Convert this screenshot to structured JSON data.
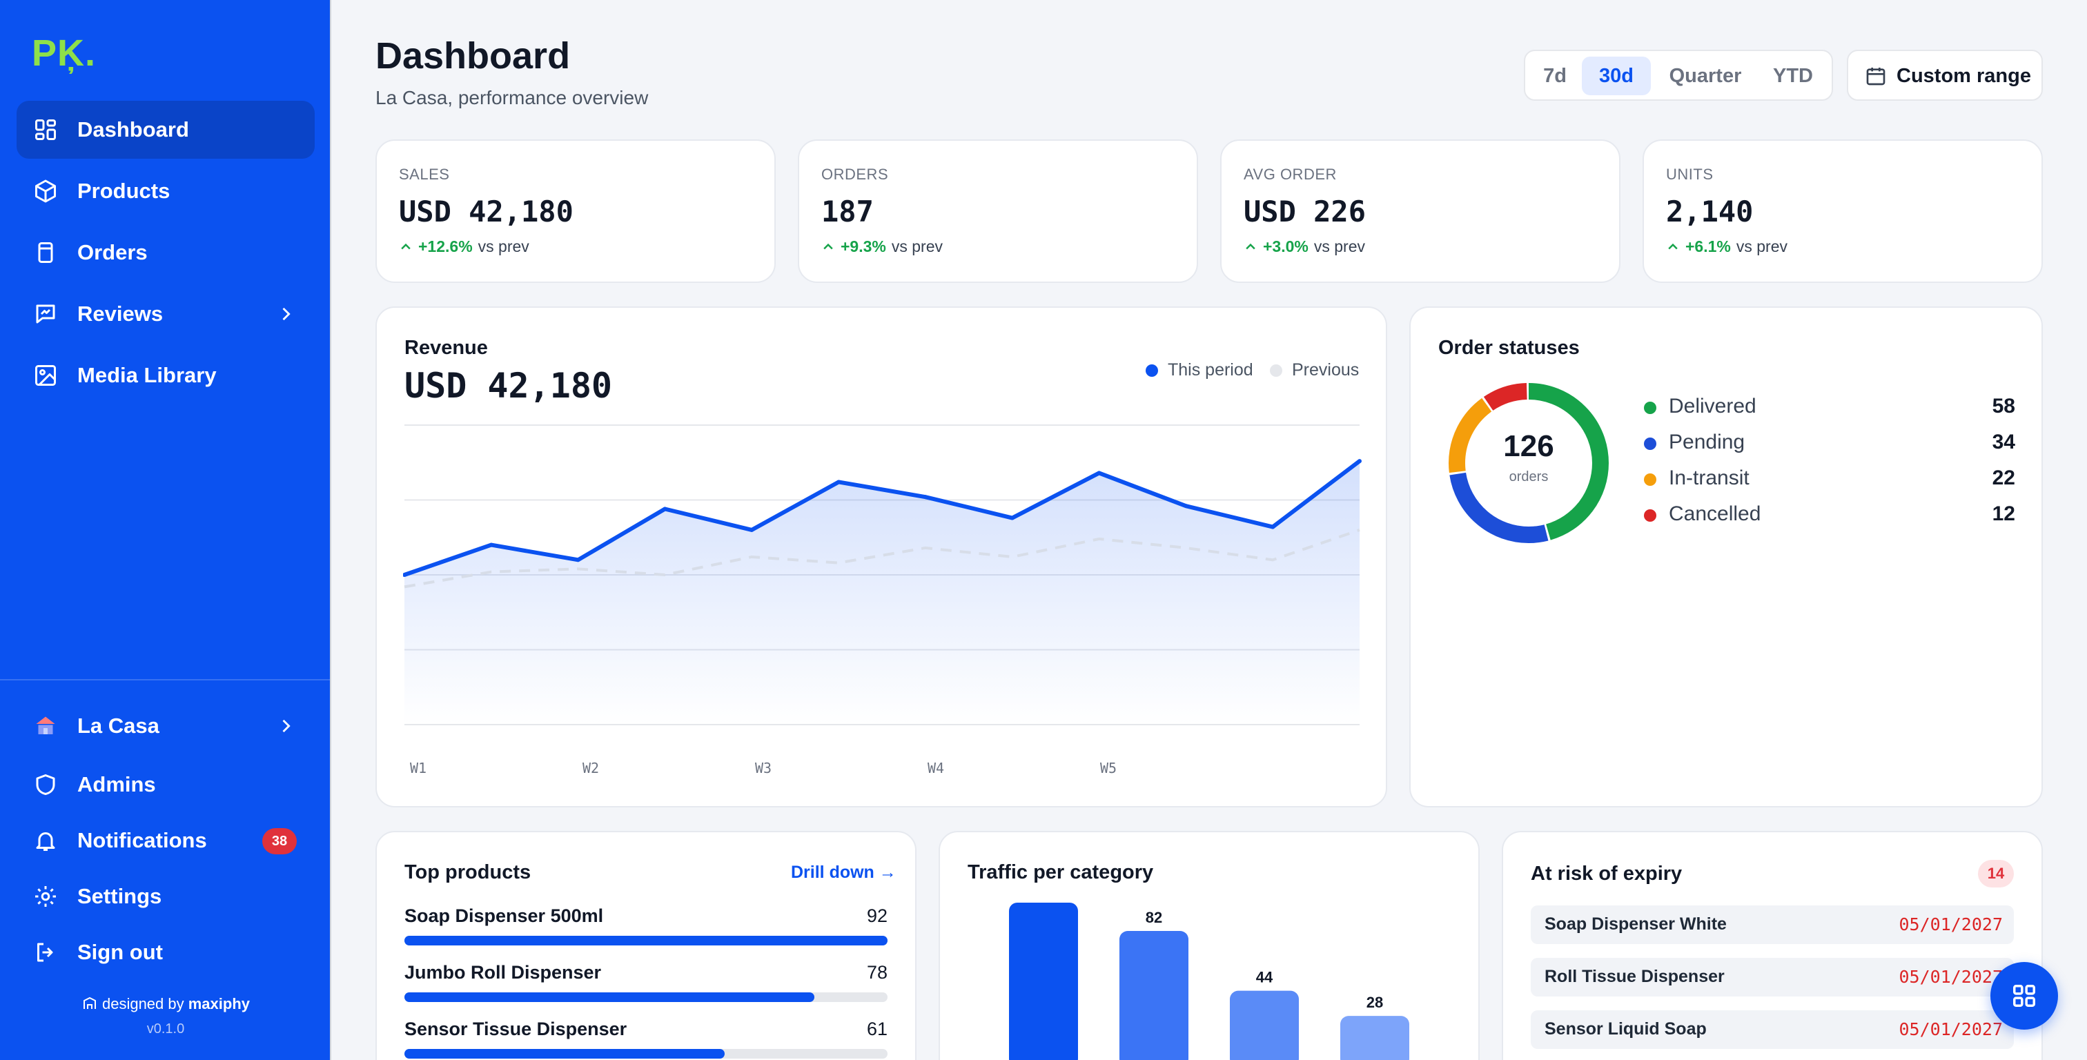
{
  "brand": {
    "logo": "PĶ."
  },
  "sidebar": {
    "items": [
      {
        "label": "Dashboard",
        "icon": "dashboard-icon",
        "active": true
      },
      {
        "label": "Products",
        "icon": "box-icon"
      },
      {
        "label": "Orders",
        "icon": "receipt-icon"
      },
      {
        "label": "Reviews",
        "icon": "review-icon"
      },
      {
        "label": "Media Library",
        "icon": "image-icon"
      }
    ],
    "bottom": [
      {
        "label": "La Casa",
        "icon": "store-icon"
      },
      {
        "label": "Admins",
        "icon": "shield-icon"
      },
      {
        "label": "Notifications",
        "icon": "bell-icon",
        "badge": "38"
      },
      {
        "label": "Settings",
        "icon": "gear-icon"
      },
      {
        "label": "Sign out",
        "icon": "sign-out-icon"
      }
    ],
    "credit_prefix": "designed by",
    "credit_brand": "maxiphy",
    "version": "v0.1.0"
  },
  "header": {
    "title": "Dashboard",
    "subtitle": "La Casa, performance overview",
    "ranges": [
      "7d",
      "30d",
      "Quarter",
      "YTD"
    ],
    "active_range": "30d",
    "custom_range": "Custom range"
  },
  "kpis": [
    {
      "label": "SALES",
      "value": "USD 42,180",
      "delta": "+12.6%",
      "suffix": "vs prev"
    },
    {
      "label": "ORDERS",
      "value": "187",
      "delta": "+9.3%",
      "suffix": "vs prev"
    },
    {
      "label": "AVG ORDER",
      "value": "USD 226",
      "delta": "+3.0%",
      "suffix": "vs prev"
    },
    {
      "label": "UNITS",
      "value": "2,140",
      "delta": "+6.1%",
      "suffix": "vs prev"
    }
  ],
  "revenue": {
    "title": "Revenue",
    "total": "USD 42,180",
    "legend_current": "This period",
    "legend_previous": "Previous"
  },
  "order_statuses": {
    "title": "Order statuses",
    "total": "126",
    "total_label": "orders"
  },
  "top_products": {
    "title": "Top products",
    "link": "Drill down →",
    "items": [
      {
        "name": "Soap Dispenser 500ml",
        "value": "92"
      },
      {
        "name": "Jumbo Roll Dispenser",
        "value": "78"
      },
      {
        "name": "Sensor Tissue Dispenser",
        "value": "61"
      }
    ]
  },
  "traffic": {
    "title": "Traffic per category"
  },
  "expiry": {
    "title": "At risk of expiry",
    "count": "14",
    "items": [
      {
        "name": "Soap Dispenser White",
        "date": "05/01/2027"
      },
      {
        "name": "Roll Tissue Dispenser",
        "date": "05/01/2027"
      },
      {
        "name": "Sensor Liquid Soap",
        "date": "05/01/2027"
      }
    ]
  },
  "colors": {
    "primary": "#0b52f0",
    "accent_green": "#8ee04a",
    "delivered": "#16a34a",
    "pending": "#1d4ed8",
    "in_transit": "#f59e0b",
    "cancelled": "#dc2626"
  },
  "chart_data": [
    {
      "type": "area",
      "categories": [
        "W1",
        "",
        "W2",
        "",
        "W3",
        "",
        "W4",
        "",
        "W5",
        "",
        "",
        ""
      ],
      "ylim": [
        0,
        100
      ],
      "grid": true,
      "legend": "top-right",
      "series": [
        {
          "name": "This period",
          "values": [
            50,
            60,
            55,
            72,
            65,
            81,
            76,
            69,
            84,
            73,
            66,
            88
          ]
        },
        {
          "name": "Previous",
          "values": [
            46,
            51,
            52,
            50,
            56,
            54,
            59,
            56,
            62,
            59,
            55,
            65
          ]
        }
      ]
    },
    {
      "type": "pie",
      "categories": [
        "Delivered",
        "Pending",
        "In-transit",
        "Cancelled"
      ],
      "values": [
        58,
        34,
        22,
        12
      ],
      "legend": "right"
    },
    {
      "type": "bar",
      "values": [
        100,
        82,
        44,
        28
      ],
      "data_labels": [
        "",
        "82",
        "44",
        "28"
      ]
    }
  ]
}
